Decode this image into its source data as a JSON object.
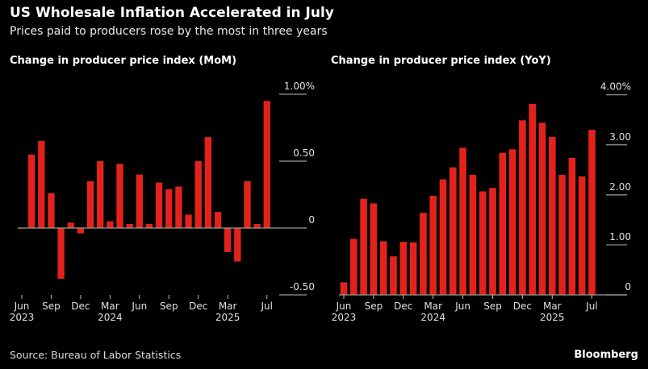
{
  "title": "US Wholesale Inflation Accelerated in July",
  "subtitle": "Prices paid to producers rose by the most in three years",
  "source": "Source: Bureau of Labor Statistics",
  "brand": "Bloomberg",
  "colors": {
    "bar": "#e3231b",
    "grid": "#9a9a9a"
  },
  "chart_data": [
    {
      "type": "bar",
      "title": "Change in producer price index (MoM)",
      "categories": [
        "Jun 2023",
        "Jul 2023",
        "Aug 2023",
        "Sep 2023",
        "Oct 2023",
        "Nov 2023",
        "Dec 2023",
        "Jan 2024",
        "Feb 2024",
        "Mar 2024",
        "Apr 2024",
        "May 2024",
        "Jun 2024",
        "Jul 2024",
        "Aug 2024",
        "Sep 2024",
        "Oct 2024",
        "Nov 2024",
        "Dec 2024",
        "Jan 2025",
        "Feb 2025",
        "Mar 2025",
        "Apr 2025",
        "May 2025",
        "Jun 2025",
        "Jul 2025"
      ],
      "values": [
        0.0,
        0.55,
        0.65,
        0.26,
        -0.38,
        0.04,
        -0.04,
        0.35,
        0.5,
        0.05,
        0.48,
        0.03,
        0.4,
        0.03,
        0.34,
        0.29,
        0.31,
        0.1,
        0.5,
        0.68,
        0.12,
        -0.18,
        -0.25,
        0.35,
        0.03,
        0.95
      ],
      "ylim": [
        -0.5,
        1.0
      ],
      "yticks": [
        {
          "v": 1.0,
          "label": "1.00%"
        },
        {
          "v": 0.5,
          "label": "0.50"
        },
        {
          "v": 0,
          "label": "0"
        },
        {
          "v": -0.5,
          "label": "-0.50"
        }
      ],
      "xticks": [
        {
          "i": 0,
          "label": "Jun",
          "year": "2023"
        },
        {
          "i": 3,
          "label": "Sep"
        },
        {
          "i": 6,
          "label": "Dec"
        },
        {
          "i": 9,
          "label": "Mar",
          "year": "2024"
        },
        {
          "i": 12,
          "label": "Jun"
        },
        {
          "i": 15,
          "label": "Sep"
        },
        {
          "i": 18,
          "label": "Dec"
        },
        {
          "i": 21,
          "label": "Mar",
          "year": "2025"
        },
        {
          "i": 25,
          "label": "Jul"
        }
      ]
    },
    {
      "type": "bar",
      "title": "Change in producer price index (YoY)",
      "categories": [
        "Jun 2023",
        "Jul 2023",
        "Aug 2023",
        "Sep 2023",
        "Oct 2023",
        "Nov 2023",
        "Dec 2023",
        "Jan 2024",
        "Feb 2024",
        "Mar 2024",
        "Apr 2024",
        "May 2024",
        "Jun 2024",
        "Jul 2024",
        "Aug 2024",
        "Sep 2024",
        "Oct 2024",
        "Nov 2024",
        "Dec 2024",
        "Jan 2025",
        "Feb 2025",
        "Mar 2025",
        "Apr 2025",
        "May 2025",
        "Jun 2025",
        "Jul 2025"
      ],
      "values": [
        0.25,
        1.12,
        1.92,
        1.83,
        1.07,
        0.77,
        1.06,
        1.05,
        1.64,
        1.98,
        2.31,
        2.55,
        2.94,
        2.4,
        2.07,
        2.14,
        2.84,
        2.91,
        3.49,
        3.82,
        3.44,
        3.16,
        2.4,
        2.74,
        2.37,
        3.3
      ],
      "ylim": [
        0,
        4.0
      ],
      "yticks": [
        {
          "v": 4.0,
          "label": "4.00%"
        },
        {
          "v": 3.0,
          "label": "3.00"
        },
        {
          "v": 2.0,
          "label": "2.00"
        },
        {
          "v": 1.0,
          "label": "1.00"
        },
        {
          "v": 0,
          "label": "0"
        }
      ],
      "xticks": [
        {
          "i": 0,
          "label": "Jun",
          "year": "2023"
        },
        {
          "i": 3,
          "label": "Sep"
        },
        {
          "i": 6,
          "label": "Dec"
        },
        {
          "i": 9,
          "label": "Mar",
          "year": "2024"
        },
        {
          "i": 12,
          "label": "Jun"
        },
        {
          "i": 15,
          "label": "Sep"
        },
        {
          "i": 18,
          "label": "Dec"
        },
        {
          "i": 21,
          "label": "Mar",
          "year": "2025"
        },
        {
          "i": 25,
          "label": "Jul"
        }
      ]
    }
  ]
}
